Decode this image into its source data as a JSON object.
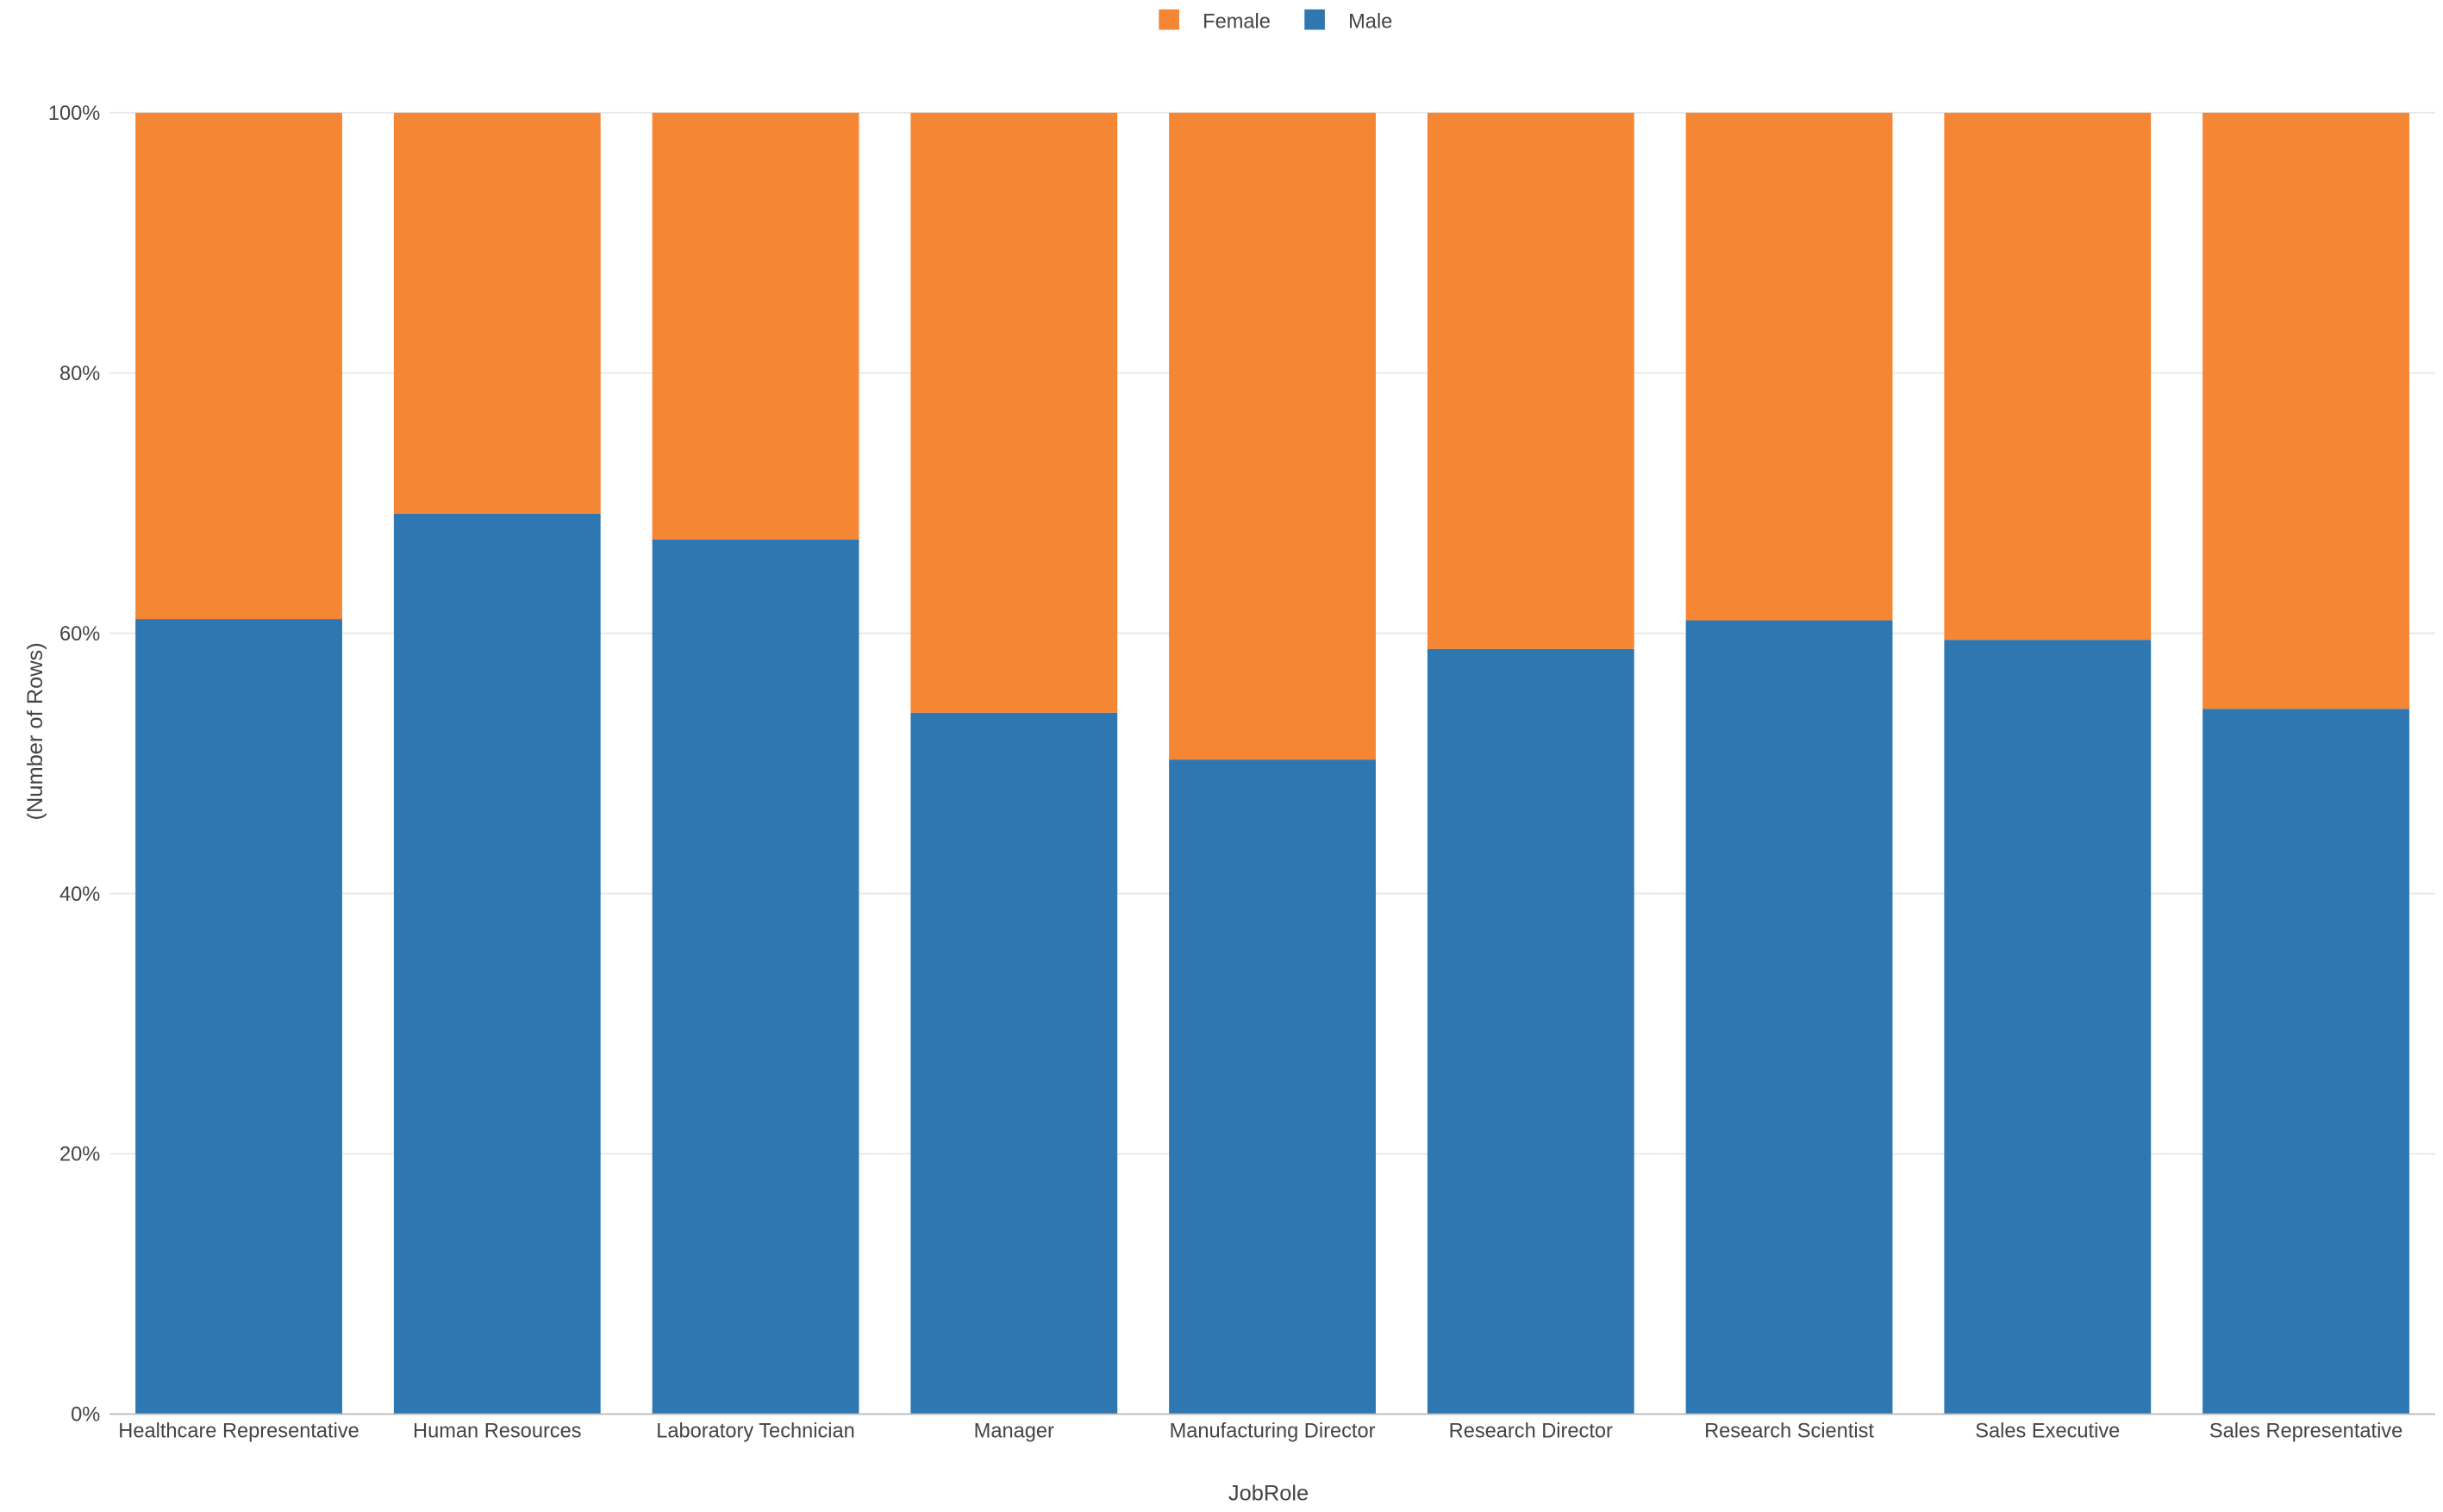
{
  "chart_data": {
    "type": "bar",
    "stacked": true,
    "normalized": true,
    "title": "",
    "xlabel": "JobRole",
    "ylabel": "(Number of Rows)",
    "ylim": [
      0,
      100
    ],
    "yticks": [
      "0%",
      "20%",
      "40%",
      "60%",
      "80%",
      "100%"
    ],
    "grid": true,
    "legend_position": "top-center",
    "categories": [
      "Healthcare Representative",
      "Human Resources",
      "Laboratory Technician",
      "Manager",
      "Manufacturing Director",
      "Research Director",
      "Research Scientist",
      "Sales Executive",
      "Sales Representative"
    ],
    "series": [
      {
        "name": "Male",
        "color": "#2f77b1",
        "values": [
          61.1,
          69.2,
          67.2,
          53.9,
          50.3,
          58.8,
          61.0,
          59.5,
          54.2
        ]
      },
      {
        "name": "Female",
        "color": "#f58634",
        "values": [
          38.9,
          30.8,
          32.8,
          46.1,
          49.7,
          41.2,
          39.0,
          40.5,
          45.8
        ]
      }
    ],
    "legend_order": [
      "Female",
      "Male"
    ]
  }
}
